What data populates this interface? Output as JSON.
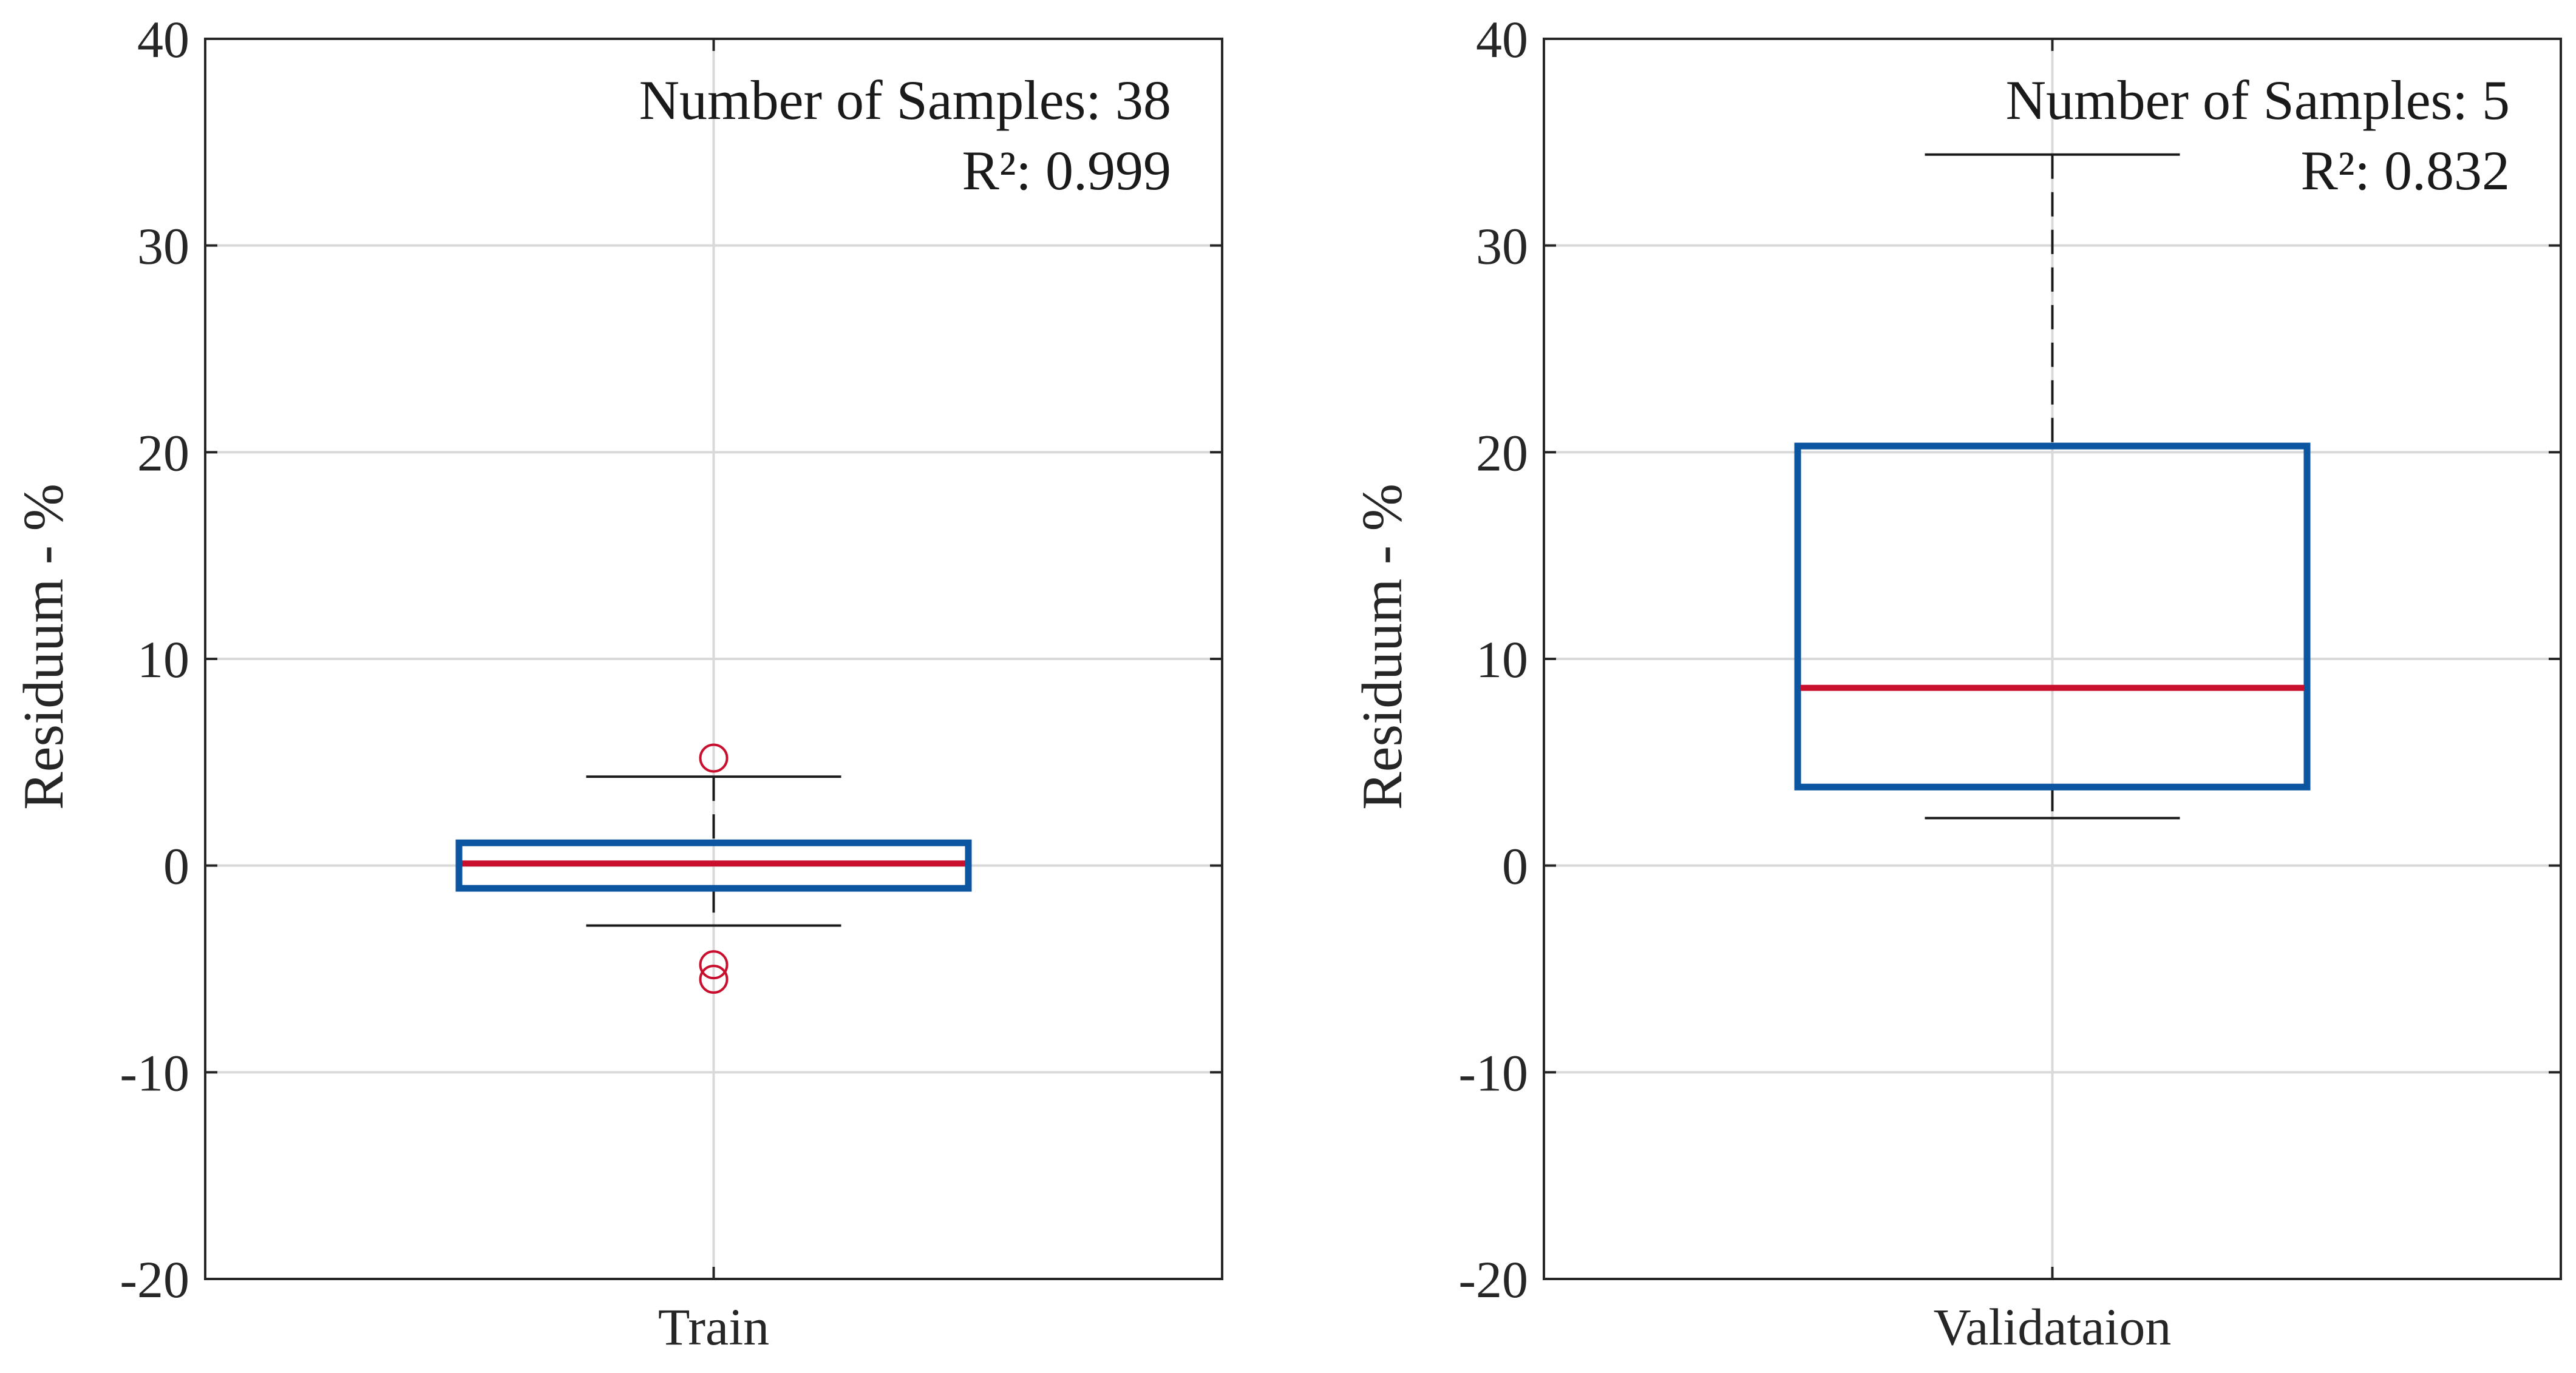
{
  "colors": {
    "box": "#0b55a1",
    "median": "#c8102e",
    "outlier": "#c8102e",
    "whisker": "#1a1a1a",
    "axes": "#262626",
    "grid": "#d9d9d9"
  },
  "chart_data": [
    {
      "type": "boxplot",
      "category": "Train",
      "ylabel": "Residuum - %",
      "ylim": [
        -20,
        40
      ],
      "yticks": [
        -20,
        -10,
        0,
        10,
        20,
        30,
        40
      ],
      "ytick_labels": [
        "-20",
        "-10",
        "0",
        "10",
        "20",
        "30",
        "40"
      ],
      "grid": true,
      "box": {
        "q1": -1.1,
        "median": 0.1,
        "q3": 1.1,
        "whisker_low": -2.9,
        "whisker_high": 4.3,
        "outliers": [
          5.2,
          -4.8,
          -5.5
        ]
      },
      "annotation": {
        "line1": "Number of Samples: 38",
        "line2": "R²: 0.999"
      }
    },
    {
      "type": "boxplot",
      "category": "Validataion",
      "ylabel": "Residuum - %",
      "ylim": [
        -20,
        40
      ],
      "yticks": [
        -20,
        -10,
        0,
        10,
        20,
        30,
        40
      ],
      "ytick_labels": [
        "-20",
        "-10",
        "0",
        "10",
        "20",
        "30",
        "40"
      ],
      "grid": true,
      "box": {
        "q1": 3.8,
        "median": 8.6,
        "q3": 20.3,
        "whisker_low": 2.3,
        "whisker_high": 34.4,
        "outliers": []
      },
      "annotation": {
        "line1": "Number of Samples: 5",
        "line2": "R²: 0.832"
      }
    }
  ]
}
